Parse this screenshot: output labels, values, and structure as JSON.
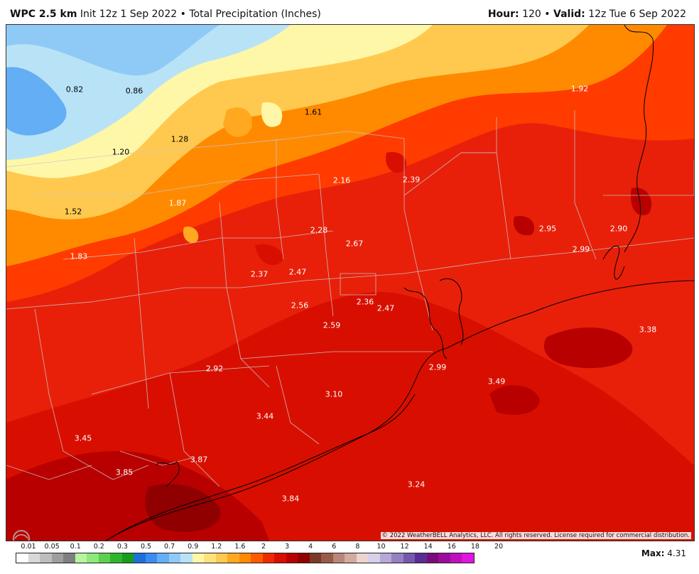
{
  "header": {
    "model": "WPC 2.5 km",
    "init": "Init 12z 1 Sep 2022",
    "sep": "•",
    "product": "Total Precipitation (Inches)",
    "hour_label": "Hour:",
    "hour_value": "120",
    "valid_label": "Valid:",
    "valid_value": "12z Tue 6 Sep 2022"
  },
  "map": {
    "copyright": "© 2022 WeatherBELL Analytics, LLC. All rights reserved. License required for commercial distribution.",
    "logo_text": "WeatherBELL",
    "value_labels": [
      {
        "text": "0.82",
        "color": "#000"
      },
      {
        "text": "0.86",
        "color": "#000"
      },
      {
        "text": "1.61",
        "color": "#000"
      },
      {
        "text": "1.92",
        "color": "#fff"
      },
      {
        "text": "1.28",
        "color": "#000"
      },
      {
        "text": "1.20",
        "color": "#000"
      },
      {
        "text": "2.16",
        "color": "#fff"
      },
      {
        "text": "2.39",
        "color": "#fff"
      },
      {
        "text": "1.52",
        "color": "#000"
      },
      {
        "text": "1.87",
        "color": "#fff"
      },
      {
        "text": "2.95",
        "color": "#fff"
      },
      {
        "text": "2.90",
        "color": "#fff"
      },
      {
        "text": "2.28",
        "color": "#fff"
      },
      {
        "text": "2.67",
        "color": "#fff"
      },
      {
        "text": "2.99",
        "color": "#fff"
      },
      {
        "text": "1.83",
        "color": "#fff"
      },
      {
        "text": "2.37",
        "color": "#fff"
      },
      {
        "text": "2.47",
        "color": "#fff"
      },
      {
        "text": "2.36",
        "color": "#fff"
      },
      {
        "text": "2.47",
        "color": "#fff"
      },
      {
        "text": "2.56",
        "color": "#fff"
      },
      {
        "text": "2.59",
        "color": "#fff"
      },
      {
        "text": "3.38",
        "color": "#fff"
      },
      {
        "text": "2.92",
        "color": "#fff"
      },
      {
        "text": "2.99",
        "color": "#fff"
      },
      {
        "text": "3.49",
        "color": "#fff"
      },
      {
        "text": "3.10",
        "color": "#fff"
      },
      {
        "text": "3.44",
        "color": "#fff"
      },
      {
        "text": "3.45",
        "color": "#fff"
      },
      {
        "text": "3.87",
        "color": "#fff"
      },
      {
        "text": "3.85",
        "color": "#fff"
      },
      {
        "text": "3.24",
        "color": "#fff"
      },
      {
        "text": "3.84",
        "color": "#fff"
      }
    ]
  },
  "legend": {
    "tick_labels": [
      "0.01",
      "0.05",
      "0.1",
      "0.2",
      "0.3",
      "0.5",
      "0.7",
      "0.9",
      "1.2",
      "1.6",
      "2",
      "3",
      "4",
      "6",
      "8",
      "10",
      "12",
      "14",
      "16",
      "18",
      "20"
    ],
    "colors": [
      "#ffffff",
      "#d9d9d9",
      "#bdbdbd",
      "#9e9e9e",
      "#7f7f7f",
      "#b5f5a0",
      "#8ee87a",
      "#5bd14f",
      "#2fb52c",
      "#149e1c",
      "#1e6fdc",
      "#3a8cf0",
      "#63aef5",
      "#8fcaf7",
      "#b8e3f7",
      "#fff7a8",
      "#ffe37a",
      "#ffc94f",
      "#ffa820",
      "#ff8a00",
      "#ff5a00",
      "#f02a00",
      "#d80f00",
      "#b80000",
      "#900000",
      "#7a3a2a",
      "#9a5a48",
      "#b8867a",
      "#d3aaa0",
      "#ecd4cf",
      "#d7d0e8",
      "#b5a8d6",
      "#9480c2",
      "#7557ad",
      "#5a2c96",
      "#7a0b7a",
      "#9b0b9b",
      "#bf10bf",
      "#e014e0"
    ]
  },
  "max": {
    "label": "Max:",
    "value": "4.31"
  }
}
